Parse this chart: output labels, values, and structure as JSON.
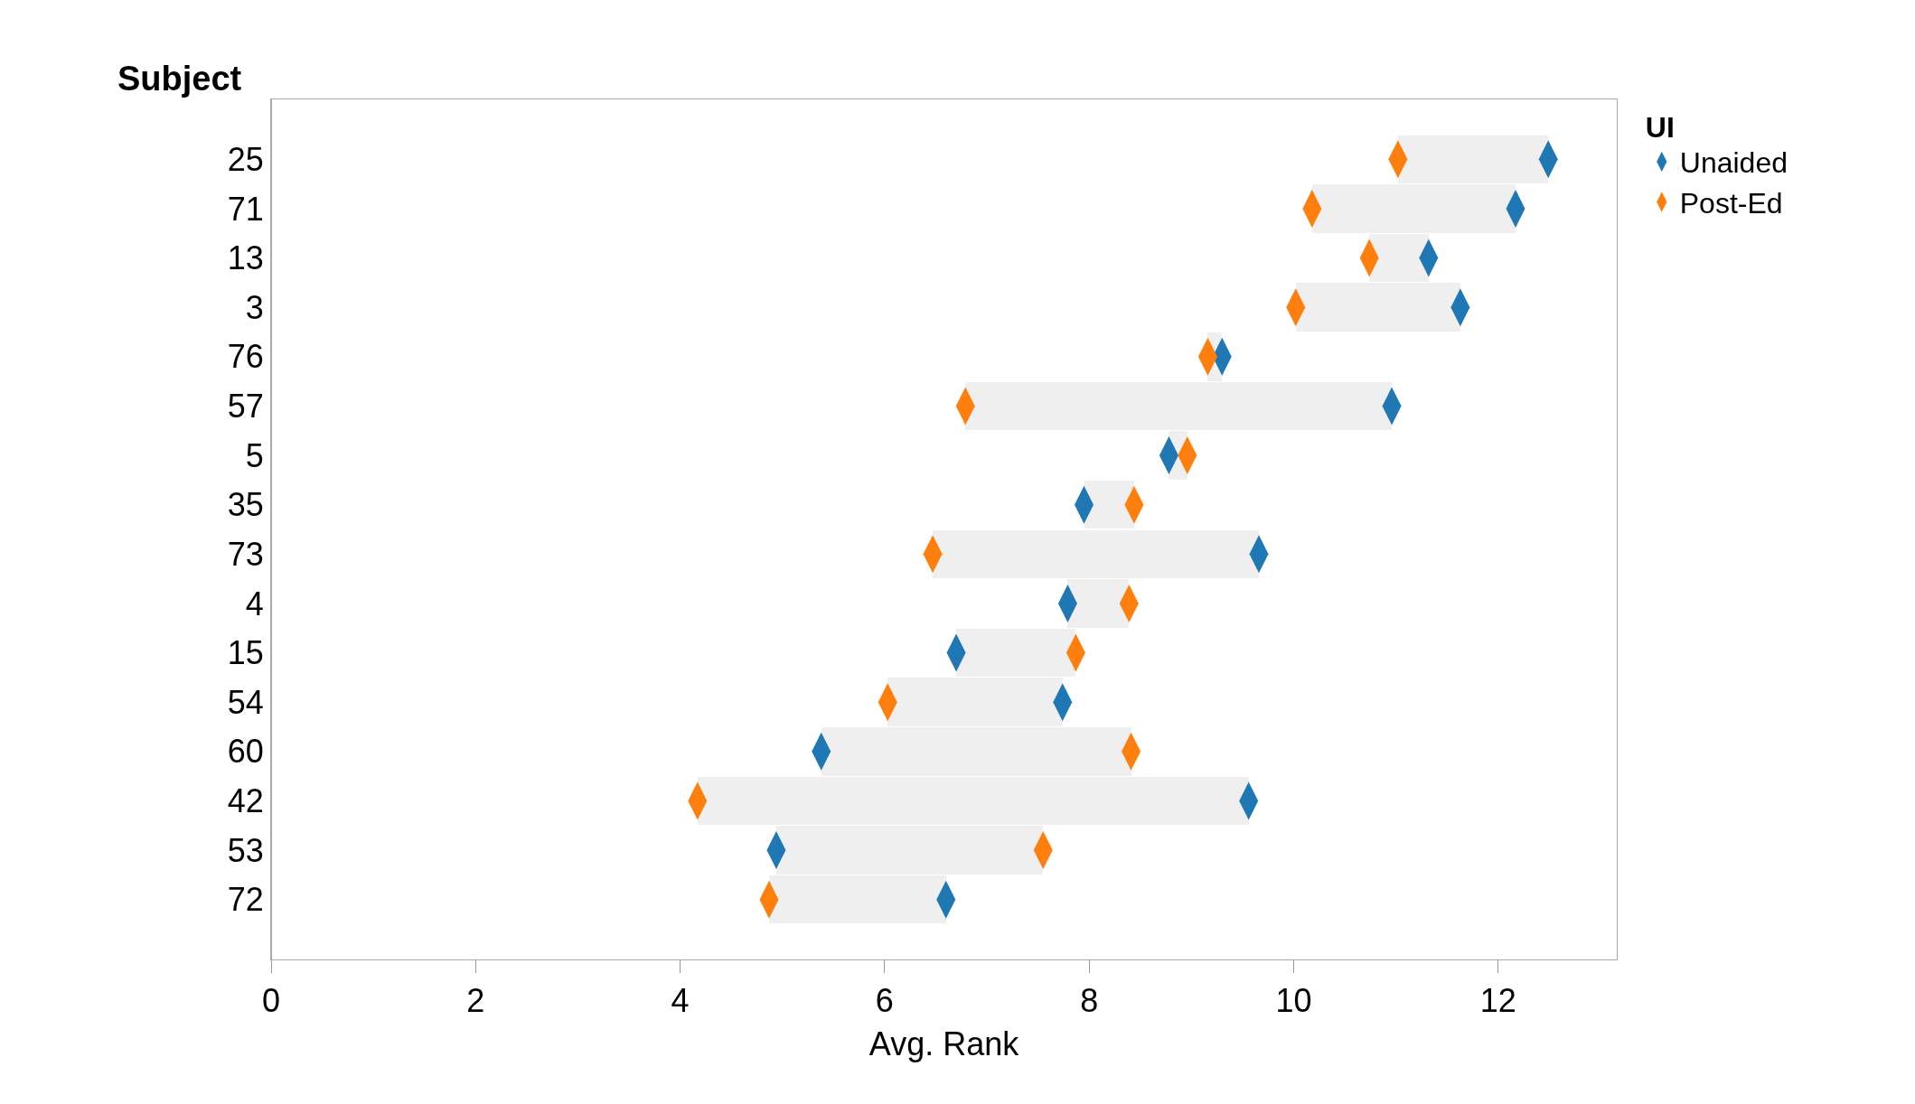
{
  "chart_data": {
    "type": "bar",
    "orientation": "horizontal",
    "ylabel": "Subject",
    "xlabel": "Avg. Rank",
    "legend_title": "UI",
    "legend": "top right",
    "categories": [
      "25",
      "71",
      "13",
      "3",
      "76",
      "57",
      "5",
      "35",
      "73",
      "4",
      "15",
      "54",
      "60",
      "42",
      "53",
      "72"
    ],
    "xlim": [
      0,
      13.16
    ],
    "xticks": [
      0,
      2,
      4,
      6,
      8,
      10,
      12
    ],
    "series": [
      {
        "color": "#efefef",
        "base": [
          11.02,
          10.18,
          10.74,
          10.02,
          9.16,
          6.79,
          8.78,
          7.95,
          6.47,
          7.79,
          6.7,
          6.03,
          5.38,
          4.17,
          4.94,
          4.87
        ],
        "values": [
          1.47,
          1.99,
          0.58,
          1.61,
          0.14,
          4.17,
          0.18,
          0.49,
          3.19,
          0.6,
          1.17,
          1.71,
          3.03,
          5.39,
          2.61,
          1.73
        ]
      },
      {
        "type": "scatter",
        "name": "Unaided",
        "color": "#1f77b4",
        "values": [
          12.49,
          12.17,
          11.32,
          11.63,
          9.3,
          10.96,
          8.78,
          7.95,
          9.66,
          7.79,
          6.7,
          7.74,
          5.38,
          9.56,
          4.94,
          6.6
        ]
      },
      {
        "type": "scatter",
        "name": "Post-Ed",
        "color": "#ff7f0e",
        "values": [
          11.02,
          10.18,
          10.74,
          10.02,
          9.16,
          6.79,
          8.96,
          8.44,
          6.47,
          8.39,
          7.87,
          6.03,
          8.41,
          4.17,
          7.55,
          4.87
        ]
      }
    ]
  }
}
